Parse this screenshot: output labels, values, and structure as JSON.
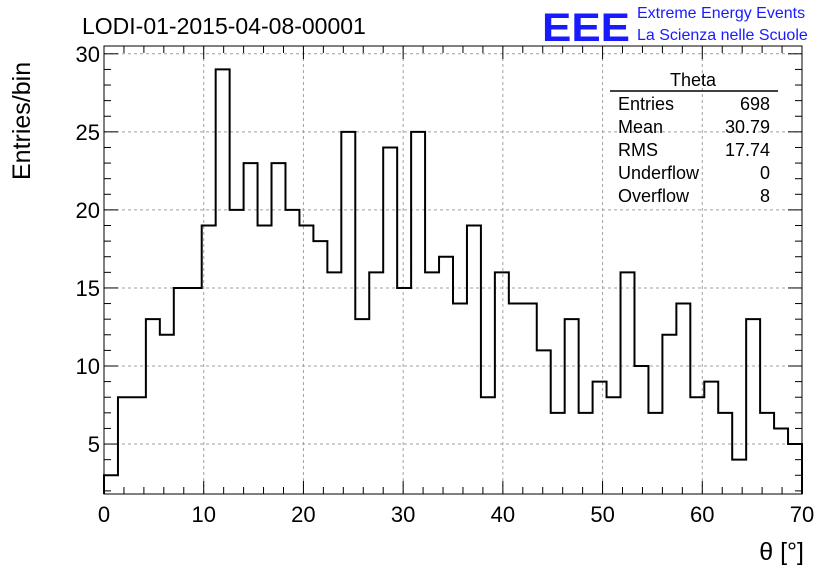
{
  "logo": {
    "mark": "EEE",
    "line1": "Extreme Energy Events",
    "line2": "La Scienza nelle Scuole",
    "color": "#1a1aff"
  },
  "stats": {
    "name": "Theta",
    "rows": [
      {
        "label": "Entries",
        "value": "698"
      },
      {
        "label": "Mean",
        "value": "30.79"
      },
      {
        "label": "RMS",
        "value": "17.74"
      },
      {
        "label": "Underflow",
        "value": "0"
      },
      {
        "label": "Overflow",
        "value": "8"
      }
    ]
  },
  "chart_data": {
    "type": "bar",
    "title": "LODI-01-2015-04-08-00001",
    "xlabel": "θ [°]",
    "ylabel": "Entries/bin",
    "xlim": [
      0,
      70
    ],
    "ylim": [
      1.8,
      30.5
    ],
    "bin_width": 1.4,
    "values": [
      3,
      8,
      8,
      13,
      12,
      15,
      15,
      19,
      29,
      20,
      23,
      19,
      23,
      20,
      19,
      18,
      16,
      25,
      13,
      16,
      24,
      15,
      25,
      16,
      17,
      14,
      19,
      8,
      16,
      14,
      14,
      11,
      7,
      13,
      7,
      9,
      8,
      16,
      10,
      7,
      12,
      14,
      8,
      9,
      7,
      4,
      13,
      7,
      6,
      5
    ],
    "xticks": [
      0,
      10,
      20,
      30,
      40,
      50,
      60,
      70
    ],
    "yticks": [
      5,
      10,
      15,
      20,
      25,
      30
    ],
    "grid": true,
    "line_color": "#000000",
    "grid_color": "#a0a0a0"
  }
}
